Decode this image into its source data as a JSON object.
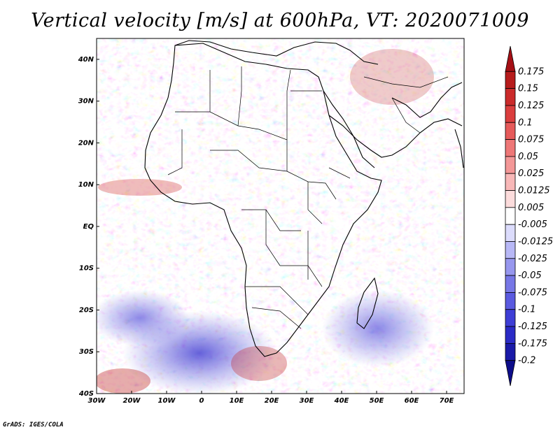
{
  "title": "Vertical velocity [m/s] at 600hPa, VT: 2020071009",
  "credit": "GrADS: IGES/COLA",
  "map": {
    "lat_ticks": [
      "40N",
      "30N",
      "20N",
      "10N",
      "EQ",
      "10S",
      "20S",
      "30S",
      "40S"
    ],
    "lon_ticks": [
      "30W",
      "20W",
      "10W",
      "0",
      "10E",
      "20E",
      "30E",
      "40E",
      "50E",
      "60E",
      "70E"
    ],
    "lat_range": [
      -40,
      45
    ],
    "lon_range": [
      -30,
      75
    ],
    "region": "Africa",
    "field": "vertical velocity",
    "units": "m/s",
    "level": "600hPa",
    "valid_time": "2020071009"
  },
  "colorbar": {
    "labels": [
      "0.175",
      "0.15",
      "0.125",
      "0.1",
      "0.075",
      "0.05",
      "0.025",
      "0.0125",
      "0.005",
      "-0.005",
      "-0.0125",
      "-0.025",
      "-0.05",
      "-0.075",
      "-0.1",
      "-0.125",
      "-0.175",
      "-0.2"
    ],
    "colors": [
      "#a50f15",
      "#b71c1c",
      "#cb2b2b",
      "#db3e3e",
      "#e65a5a",
      "#ee7777",
      "#f39797",
      "#f8b8b8",
      "#fcdcdc",
      "#ffffff",
      "#dcdcfc",
      "#b8b8f6",
      "#9797ee",
      "#7777e6",
      "#5a5ae0",
      "#3e3ed6",
      "#2b2bc6",
      "#1a1aa8",
      "#0d0d8a"
    ]
  },
  "colors": {
    "positive": "#d9363e",
    "negative": "#3a3ad8",
    "coastline": "#000000"
  }
}
